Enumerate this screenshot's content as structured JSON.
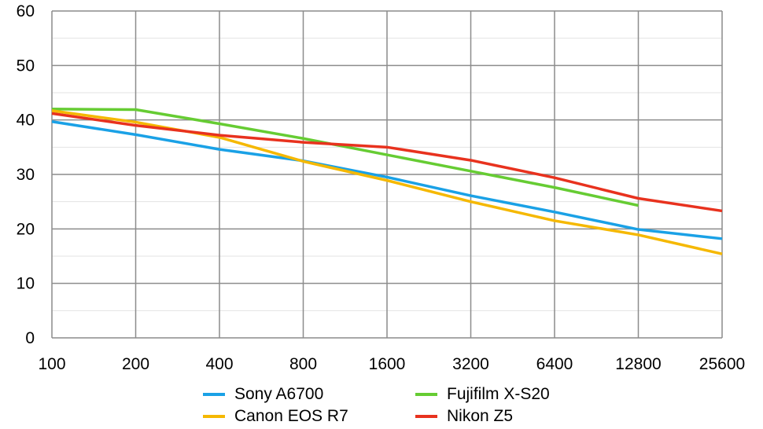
{
  "chart_data": {
    "type": "line",
    "categories": [
      "100",
      "200",
      "400",
      "800",
      "1600",
      "3200",
      "6400",
      "12800",
      "25600"
    ],
    "ylim": [
      0,
      60
    ],
    "yticks": [
      0,
      10,
      20,
      30,
      40,
      50,
      60
    ],
    "grid": true,
    "legend_position": "bottom",
    "series": [
      {
        "name": "Sony A6700",
        "color": "#1aa1e6",
        "values": [
          39.7,
          37.3,
          34.6,
          32.5,
          29.5,
          26.1,
          23.1,
          19.9,
          18.2
        ]
      },
      {
        "name": "Fujifilm X-S20",
        "color": "#66cc33",
        "values": [
          42.0,
          41.9,
          39.3,
          36.6,
          33.6,
          30.6,
          27.6,
          24.3,
          null
        ]
      },
      {
        "name": "Canon EOS R7",
        "color": "#f5b800",
        "values": [
          41.7,
          39.6,
          36.8,
          32.4,
          28.9,
          25.0,
          21.5,
          18.9,
          15.4
        ]
      },
      {
        "name": "Nikon Z5",
        "color": "#e8321e",
        "values": [
          41.2,
          39.0,
          37.2,
          35.9,
          35.0,
          32.6,
          29.4,
          25.6,
          23.3
        ]
      }
    ]
  }
}
